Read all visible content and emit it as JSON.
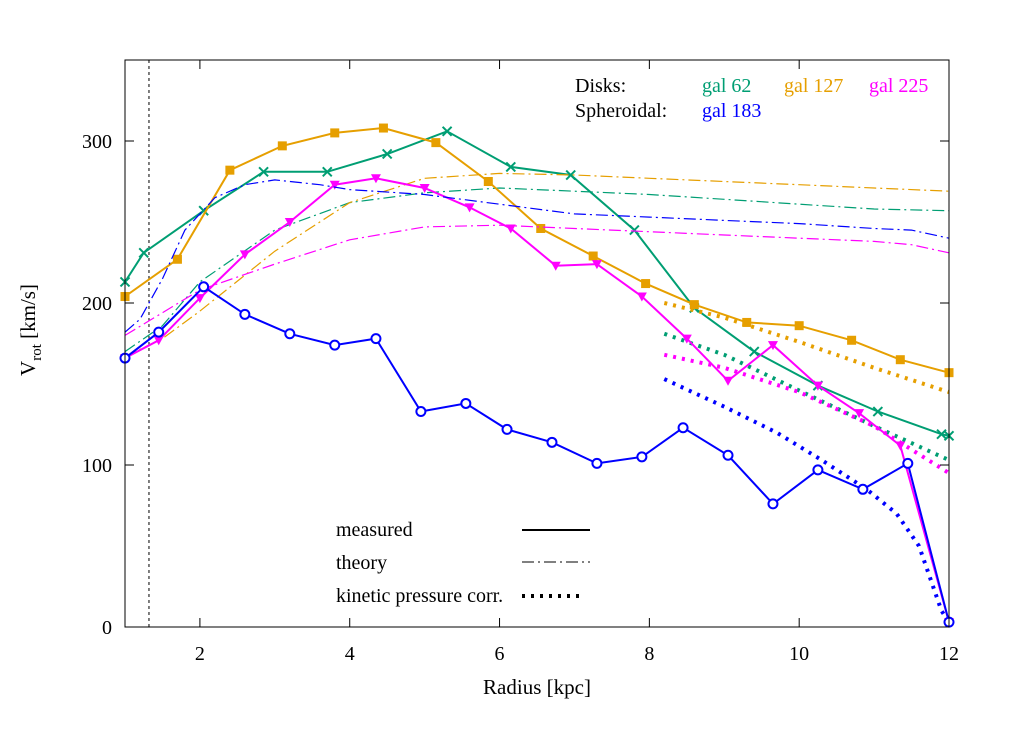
{
  "chart_data": {
    "type": "line",
    "xlabel": "Radius [kpc]",
    "ylabel_main": "V",
    "ylabel_sub": "rot",
    "ylabel_unit": " [km/s]",
    "xlim": [
      1,
      12
    ],
    "ylim": [
      0,
      350
    ],
    "x_ticks": [
      2,
      4,
      6,
      8,
      10,
      12
    ],
    "y_ticks": [
      0,
      100,
      200,
      300
    ],
    "vline_x": 1.32,
    "legend_groups": {
      "disks_label": "Disks:",
      "spheroidal_label": "Spheroidal:",
      "disks": [
        "gal 62",
        "gal 127",
        "gal 225"
      ],
      "spheroidal": [
        "gal 183"
      ]
    },
    "style_legend": {
      "measured": "measured",
      "theory": "theory",
      "kinetic": "kinetic pressure corr."
    },
    "galaxies": [
      {
        "name": "gal 62",
        "color": "#009e73",
        "marker": "x",
        "measured": [
          [
            1.0,
            213
          ],
          [
            1.25,
            231
          ],
          [
            2.05,
            257
          ],
          [
            2.85,
            281
          ],
          [
            3.7,
            281
          ],
          [
            4.5,
            292
          ],
          [
            5.3,
            306
          ],
          [
            6.15,
            284
          ],
          [
            6.95,
            279
          ],
          [
            7.8,
            245
          ],
          [
            8.6,
            197
          ],
          [
            9.4,
            170
          ],
          [
            10.25,
            149
          ],
          [
            11.05,
            133
          ],
          [
            11.9,
            119
          ],
          [
            12.0,
            118
          ]
        ],
        "theory": [
          [
            1.0,
            170
          ],
          [
            1.5,
            186
          ],
          [
            2.0,
            213
          ],
          [
            3.0,
            245
          ],
          [
            4.0,
            262
          ],
          [
            5.0,
            268
          ],
          [
            6.0,
            271
          ],
          [
            7.0,
            269
          ],
          [
            8.0,
            267
          ],
          [
            9.0,
            264
          ],
          [
            10.0,
            261
          ],
          [
            11.0,
            258
          ],
          [
            12.0,
            257
          ]
        ],
        "kinetic": [
          [
            8.2,
            181
          ],
          [
            9.0,
            168
          ],
          [
            10.0,
            146
          ],
          [
            11.0,
            124
          ],
          [
            12.0,
            103
          ]
        ]
      },
      {
        "name": "gal 127",
        "color": "#e69f00",
        "marker": "square",
        "measured": [
          [
            1.0,
            204
          ],
          [
            1.7,
            227
          ],
          [
            2.4,
            282
          ],
          [
            3.1,
            297
          ],
          [
            3.8,
            305
          ],
          [
            4.45,
            308
          ],
          [
            5.15,
            299
          ],
          [
            5.85,
            275
          ],
          [
            6.55,
            246
          ],
          [
            7.25,
            229
          ],
          [
            7.95,
            212
          ],
          [
            8.6,
            199
          ],
          [
            9.3,
            188
          ],
          [
            10.0,
            186
          ],
          [
            10.7,
            177
          ],
          [
            11.35,
            165
          ],
          [
            12.0,
            157
          ]
        ],
        "theory": [
          [
            1.0,
            167
          ],
          [
            1.5,
            178
          ],
          [
            2.0,
            195
          ],
          [
            3.0,
            232
          ],
          [
            4.0,
            262
          ],
          [
            5.0,
            277
          ],
          [
            6.0,
            280
          ],
          [
            7.0,
            279
          ],
          [
            8.0,
            277
          ],
          [
            9.0,
            275
          ],
          [
            10.0,
            273
          ],
          [
            11.0,
            271
          ],
          [
            12.0,
            269
          ]
        ],
        "kinetic": [
          [
            8.2,
            200
          ],
          [
            9.0,
            191
          ],
          [
            10.0,
            176
          ],
          [
            11.0,
            160
          ],
          [
            12.0,
            145
          ]
        ]
      },
      {
        "name": "gal 225",
        "color": "#ff00ff",
        "marker": "tri",
        "measured": [
          [
            1.0,
            166
          ],
          [
            1.45,
            177
          ],
          [
            2.0,
            203
          ],
          [
            2.6,
            230
          ],
          [
            3.2,
            250
          ],
          [
            3.8,
            273
          ],
          [
            4.35,
            277
          ],
          [
            5.0,
            271
          ],
          [
            5.6,
            259
          ],
          [
            6.15,
            246
          ],
          [
            6.75,
            223
          ],
          [
            7.3,
            224
          ],
          [
            7.9,
            204
          ],
          [
            8.5,
            178
          ],
          [
            9.05,
            152
          ],
          [
            9.65,
            174
          ],
          [
            10.25,
            149
          ],
          [
            10.8,
            132
          ],
          [
            11.35,
            112
          ],
          [
            12.0,
            3
          ]
        ],
        "theory": [
          [
            1.0,
            180
          ],
          [
            1.5,
            194
          ],
          [
            2.0,
            208
          ],
          [
            3.0,
            224
          ],
          [
            4.0,
            239
          ],
          [
            5.0,
            247
          ],
          [
            6.0,
            248
          ],
          [
            7.0,
            246
          ],
          [
            8.0,
            244
          ],
          [
            9.0,
            242
          ],
          [
            10.0,
            240
          ],
          [
            11.0,
            238
          ],
          [
            11.5,
            236
          ],
          [
            12.0,
            231
          ]
        ],
        "kinetic": [
          [
            8.2,
            168
          ],
          [
            9.0,
            160
          ],
          [
            10.0,
            145
          ],
          [
            11.0,
            124
          ],
          [
            12.0,
            95
          ]
        ]
      },
      {
        "name": "gal 183",
        "color": "#0000ff",
        "marker": "circle",
        "measured": [
          [
            1.0,
            166
          ],
          [
            1.45,
            182
          ],
          [
            2.05,
            210
          ],
          [
            2.6,
            193
          ],
          [
            3.2,
            181
          ],
          [
            3.8,
            174
          ],
          [
            4.35,
            178
          ],
          [
            4.95,
            133
          ],
          [
            5.55,
            138
          ],
          [
            6.1,
            122
          ],
          [
            6.7,
            114
          ],
          [
            7.3,
            101
          ],
          [
            7.9,
            105
          ],
          [
            8.45,
            123
          ],
          [
            9.05,
            106
          ],
          [
            9.65,
            76
          ],
          [
            10.25,
            97
          ],
          [
            10.85,
            85
          ],
          [
            11.45,
            101
          ],
          [
            12.0,
            3
          ]
        ],
        "theory": [
          [
            1.0,
            182
          ],
          [
            1.2,
            190
          ],
          [
            1.5,
            215
          ],
          [
            1.8,
            245
          ],
          [
            2.2,
            265
          ],
          [
            2.6,
            273
          ],
          [
            3.0,
            276
          ],
          [
            3.6,
            273
          ],
          [
            4.0,
            270
          ],
          [
            5.0,
            267
          ],
          [
            6.0,
            261
          ],
          [
            7.0,
            255
          ],
          [
            8.0,
            253
          ],
          [
            9.0,
            251
          ],
          [
            10.0,
            249
          ],
          [
            11.0,
            246
          ],
          [
            11.5,
            245
          ],
          [
            12.0,
            240
          ]
        ],
        "kinetic": [
          [
            8.2,
            153
          ],
          [
            9.0,
            136
          ],
          [
            9.7,
            120
          ],
          [
            10.3,
            103
          ],
          [
            10.9,
            85
          ],
          [
            11.3,
            70
          ],
          [
            11.6,
            50
          ],
          [
            11.9,
            10
          ],
          [
            12.0,
            3
          ]
        ]
      }
    ]
  }
}
